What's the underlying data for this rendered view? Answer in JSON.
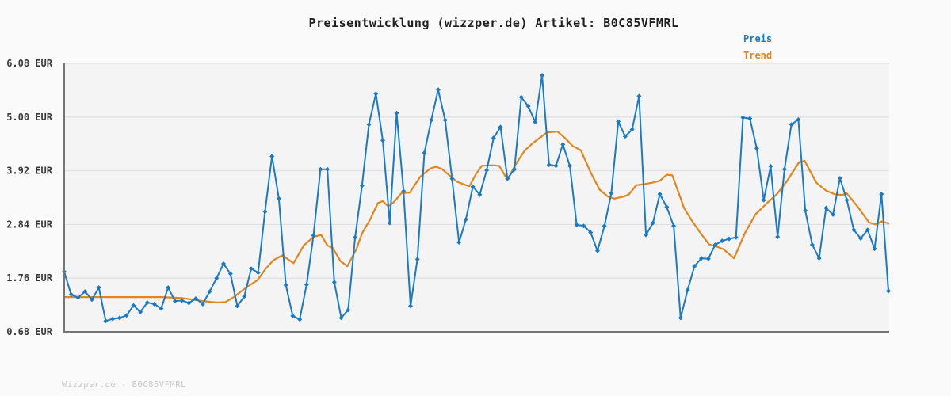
{
  "header": {
    "title": "Preisentwicklung (wizzper.de) Artikel: B0C85VFMRL"
  },
  "legend": {
    "preis_label": "Preis",
    "trend_label": "Trend"
  },
  "footer": {
    "note": "Wizzper.de - B0C85VFMRL"
  },
  "colors": {
    "figure_background": "#fafafa",
    "plot_background": "#f4f4f4",
    "grid": "#e1e1e1",
    "spine": "#757575",
    "price_blue": "#1b7ac2",
    "trend_orange": "#e1861f",
    "tick_text": "#3a3a3a",
    "footer_text": "#c8c8c8"
  },
  "chart_data": {
    "type": "line",
    "title": "Preisentwicklung (wizzper.de) Artikel: B0C85VFMRL",
    "ylabel": "EUR",
    "xlabel": "",
    "ylim": [
      0.68,
      6.08
    ],
    "y_tick_values": [
      6.08,
      5.0,
      3.92,
      2.84,
      1.76,
      0.68
    ],
    "y_tick_labels": [
      "6.08 EUR",
      "5.00 EUR",
      "3.92 EUR",
      "2.84 EUR",
      "1.76 EUR",
      "0.68 EUR"
    ],
    "grid": "horizontal",
    "legend_position": "top-right-outside",
    "x_tick_labels_shown": false,
    "series": [
      {
        "name": "Preis",
        "color": "#1b7ac2",
        "marker": "diamond",
        "values": [
          1.89,
          1.43,
          1.37,
          1.49,
          1.33,
          1.57,
          0.9,
          0.94,
          0.96,
          1.01,
          1.21,
          1.08,
          1.27,
          1.24,
          1.15,
          1.57,
          1.3,
          1.31,
          1.26,
          1.35,
          1.24,
          1.49,
          1.76,
          2.05,
          1.85,
          1.2,
          1.39,
          1.95,
          1.87,
          3.1,
          4.21,
          3.36,
          1.62,
          1.0,
          0.93,
          1.63,
          2.62,
          3.95,
          3.95,
          1.68,
          0.96,
          1.12,
          2.58,
          3.62,
          4.85,
          5.47,
          4.53,
          2.87,
          5.08,
          3.51,
          1.2,
          2.14,
          4.28,
          4.94,
          5.55,
          4.94,
          3.76,
          2.48,
          2.94,
          3.6,
          3.44,
          3.93,
          4.58,
          4.8,
          3.76,
          3.95,
          5.4,
          5.22,
          4.9,
          5.84,
          4.04,
          4.02,
          4.45,
          4.02,
          2.83,
          2.81,
          2.68,
          2.31,
          2.81,
          3.47,
          4.91,
          4.61,
          4.75,
          5.42,
          2.63,
          2.87,
          3.45,
          3.19,
          2.81,
          0.96,
          1.52,
          2.0,
          2.16,
          2.15,
          2.43,
          2.51,
          2.55,
          2.58,
          4.99,
          4.97,
          4.37,
          3.33,
          4.01,
          2.59,
          3.95,
          4.85,
          4.95,
          3.12,
          2.43,
          2.16,
          3.17,
          3.04,
          3.77,
          3.33,
          2.73,
          2.56,
          2.73,
          2.35,
          3.45,
          1.5
        ]
      },
      {
        "name": "Trend",
        "color": "#e1861f",
        "marker": "none",
        "waypoints": [
          [
            0,
            1.38
          ],
          [
            14,
            1.38
          ],
          [
            17,
            1.36
          ],
          [
            20,
            1.3
          ],
          [
            22,
            1.27
          ],
          [
            23.3,
            1.28
          ],
          [
            24.5,
            1.38
          ],
          [
            25.6,
            1.5
          ],
          [
            26.8,
            1.62
          ],
          [
            27.9,
            1.72
          ],
          [
            29.1,
            1.95
          ],
          [
            30.2,
            2.12
          ],
          [
            31.5,
            2.22
          ],
          [
            33.1,
            2.06
          ],
          [
            34.6,
            2.42
          ],
          [
            36,
            2.59
          ],
          [
            37.1,
            2.63
          ],
          [
            38,
            2.42
          ],
          [
            38.8,
            2.36
          ],
          [
            39.9,
            2.1
          ],
          [
            40.9,
            2.0
          ],
          [
            42.2,
            2.35
          ],
          [
            43,
            2.66
          ],
          [
            44.2,
            2.95
          ],
          [
            45.3,
            3.27
          ],
          [
            46,
            3.31
          ],
          [
            46.8,
            3.2
          ],
          [
            47.6,
            3.29
          ],
          [
            48.7,
            3.47
          ],
          [
            49.9,
            3.48
          ],
          [
            51.4,
            3.8
          ],
          [
            52.9,
            3.97
          ],
          [
            53.7,
            4.0
          ],
          [
            54.5,
            3.96
          ],
          [
            55.6,
            3.83
          ],
          [
            56.7,
            3.7
          ],
          [
            58,
            3.63
          ],
          [
            58.5,
            3.61
          ],
          [
            59.4,
            3.84
          ],
          [
            60.3,
            4.02
          ],
          [
            61.7,
            4.03
          ],
          [
            62.8,
            4.02
          ],
          [
            64,
            3.74
          ],
          [
            65.2,
            4.05
          ],
          [
            66.5,
            4.33
          ],
          [
            67.7,
            4.48
          ],
          [
            69.7,
            4.69
          ],
          [
            71.2,
            4.71
          ],
          [
            72.3,
            4.58
          ],
          [
            73.4,
            4.42
          ],
          [
            74.6,
            4.33
          ],
          [
            76,
            3.89
          ],
          [
            77.3,
            3.54
          ],
          [
            78.5,
            3.4
          ],
          [
            79.4,
            3.36
          ],
          [
            80.8,
            3.4
          ],
          [
            81.5,
            3.44
          ],
          [
            82.6,
            3.63
          ],
          [
            83.7,
            3.65
          ],
          [
            84.9,
            3.68
          ],
          [
            86,
            3.72
          ],
          [
            87,
            3.84
          ],
          [
            87.8,
            3.83
          ],
          [
            89.5,
            3.17
          ],
          [
            90.6,
            2.92
          ],
          [
            91.8,
            2.68
          ],
          [
            93.1,
            2.44
          ],
          [
            94.1,
            2.4
          ],
          [
            95.2,
            2.34
          ],
          [
            96.7,
            2.16
          ],
          [
            98.3,
            2.67
          ],
          [
            99.8,
            3.04
          ],
          [
            101.4,
            3.26
          ],
          [
            102.9,
            3.45
          ],
          [
            104.3,
            3.7
          ],
          [
            106.1,
            4.09
          ],
          [
            106.9,
            4.12
          ],
          [
            108.6,
            3.68
          ],
          [
            110,
            3.52
          ],
          [
            111.2,
            3.45
          ],
          [
            112.4,
            3.43
          ],
          [
            112.9,
            3.48
          ],
          [
            114.6,
            3.19
          ],
          [
            116.2,
            2.88
          ],
          [
            117.2,
            2.84
          ],
          [
            118,
            2.9
          ],
          [
            119,
            2.86
          ]
        ]
      }
    ]
  }
}
